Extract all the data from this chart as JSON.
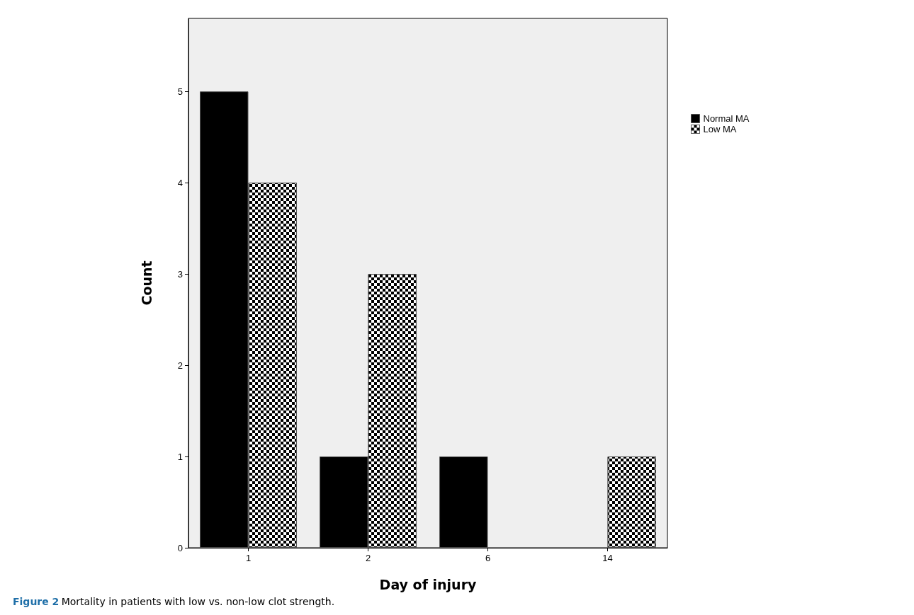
{
  "chart_data": {
    "type": "bar",
    "xlabel": "Day of injury",
    "ylabel": "Count",
    "categories": [
      "1",
      "2",
      "6",
      "14"
    ],
    "series": [
      {
        "name": "Normal MA",
        "color": "#000000",
        "values": [
          5,
          1,
          1,
          0
        ]
      },
      {
        "name": "Low MA",
        "color": "#ffffff",
        "values": [
          4,
          3,
          0,
          1
        ]
      }
    ],
    "ylim": [
      0,
      5.8
    ],
    "yticks": [
      0,
      1,
      2,
      3,
      4,
      5
    ],
    "grid": false,
    "legend": "top right",
    "annotations": [
      "Figure 2 Mortality in patients with low vs. non-low clot strength."
    ]
  }
}
